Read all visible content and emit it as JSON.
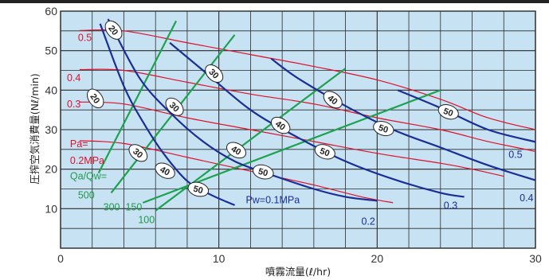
{
  "chart_data": {
    "type": "line",
    "xlabel": "噴霧流量(ℓ/hr)",
    "ylabel": "圧搾空気消費量(Nℓ/min)",
    "xlim": [
      0,
      30
    ],
    "ylim": [
      0,
      60
    ],
    "x_ticks": [
      "0",
      "10",
      "20",
      "30"
    ],
    "y_ticks": [
      "10",
      "20",
      "30",
      "40",
      "50",
      "60"
    ],
    "grid": true,
    "colors": {
      "plot_bg": "#c7e2f3",
      "grid": "#2a2a2a",
      "air_pressure": "#e0102a",
      "water_pressure": "#1b2e95",
      "ratio": "#1ea24f",
      "label_red": "#e0102a",
      "label_blue": "#1b2e95",
      "label_green": "#1e9a4a"
    },
    "air_pressure_lines": [
      {
        "name": "0.5",
        "points": [
          [
            1.2,
            55.1
          ],
          [
            4.0,
            55.0
          ],
          [
            8.0,
            52.0
          ],
          [
            12.0,
            49.0
          ],
          [
            16.0,
            46.0
          ],
          [
            20.0,
            42.6
          ],
          [
            24.0,
            37.7
          ],
          [
            27.0,
            33.0
          ],
          [
            30.0,
            30.0
          ]
        ]
      },
      {
        "name": "0.4",
        "points": [
          [
            1.2,
            45.2
          ],
          [
            4.0,
            45.0
          ],
          [
            8.0,
            42.0
          ],
          [
            12.0,
            39.0
          ],
          [
            16.0,
            36.5
          ],
          [
            20.0,
            33.0
          ],
          [
            24.0,
            30.0
          ],
          [
            27.0,
            27.0
          ],
          [
            30.0,
            24.5
          ]
        ]
      },
      {
        "name": "0.3",
        "points": [
          [
            1.2,
            37.0
          ],
          [
            4.0,
            36.5
          ],
          [
            8.0,
            33.0
          ],
          [
            12.0,
            30.0
          ],
          [
            16.0,
            27.0
          ],
          [
            20.0,
            24.0
          ],
          [
            24.0,
            21.5
          ],
          [
            26.0,
            20.0
          ],
          [
            28.0,
            18.2
          ]
        ]
      },
      {
        "name": "0.2MPa",
        "points": [
          [
            1.2,
            27.2
          ],
          [
            4.0,
            26.5
          ],
          [
            8.0,
            23.0
          ],
          [
            12.0,
            19.5
          ],
          [
            16.0,
            16.0
          ],
          [
            19.0,
            13.0
          ],
          [
            21.0,
            11.5
          ]
        ]
      }
    ],
    "water_pressure_lines": [
      {
        "name": "Pw=0.1MPa",
        "points": [
          [
            2.5,
            56.8
          ],
          [
            4.0,
            41.0
          ],
          [
            5.2,
            32.0
          ],
          [
            6.5,
            24.0
          ],
          [
            8.0,
            17.0
          ],
          [
            9.5,
            13.5
          ],
          [
            11.0,
            10.9
          ]
        ]
      },
      {
        "name": "0.2",
        "points": [
          [
            3.0,
            58.0
          ],
          [
            5.0,
            43.0
          ],
          [
            7.0,
            34.0
          ],
          [
            9.0,
            27.0
          ],
          [
            11.0,
            22.0
          ],
          [
            13.0,
            19.0
          ],
          [
            16.0,
            15.0
          ],
          [
            18.0,
            13.0
          ],
          [
            20.0,
            12.0
          ]
        ]
      },
      {
        "name": "0.3",
        "points": [
          [
            6.9,
            52.0
          ],
          [
            9.0,
            45.0
          ],
          [
            12.0,
            35.0
          ],
          [
            15.0,
            28.0
          ],
          [
            18.0,
            22.0
          ],
          [
            21.0,
            17.5
          ],
          [
            24.0,
            14.0
          ],
          [
            25.5,
            13.0
          ]
        ]
      },
      {
        "name": "0.4",
        "points": [
          [
            13.3,
            48.0
          ],
          [
            15.0,
            43.0
          ],
          [
            18.0,
            36.0
          ],
          [
            21.0,
            30.0
          ],
          [
            24.0,
            25.5
          ],
          [
            27.0,
            21.0
          ],
          [
            30.0,
            17.2
          ]
        ]
      },
      {
        "name": "0.5",
        "points": [
          [
            21.3,
            40.0
          ],
          [
            24.0,
            35.5
          ],
          [
            27.0,
            30.0
          ],
          [
            30.0,
            26.9
          ]
        ]
      }
    ],
    "ratio_lines": [
      {
        "name": "100",
        "points": [
          [
            6.0,
            9.5
          ],
          [
            18.0,
            45.5
          ]
        ]
      },
      {
        "name": "150",
        "points": [
          [
            5.2,
            11.5
          ],
          [
            24.0,
            40.0
          ]
        ]
      },
      {
        "name": "300",
        "points": [
          [
            3.2,
            14.0
          ],
          [
            11.0,
            54.0
          ]
        ]
      },
      {
        "name": "500",
        "points": [
          [
            2.4,
            19.0
          ],
          [
            7.3,
            57.5
          ]
        ]
      }
    ],
    "oval_labels": [
      {
        "text": "20",
        "x": 3.35,
        "y": 55.2,
        "angle": 52
      },
      {
        "text": "30",
        "x": 9.7,
        "y": 44.2,
        "angle": 45
      },
      {
        "text": "40",
        "x": 17.2,
        "y": 37.6,
        "angle": 38
      },
      {
        "text": "50",
        "x": 24.5,
        "y": 34.5,
        "angle": 20
      },
      {
        "text": "20",
        "x": 2.2,
        "y": 37.9,
        "angle": 55
      },
      {
        "text": "30",
        "x": 7.2,
        "y": 35.8,
        "angle": 45
      },
      {
        "text": "40",
        "x": 13.9,
        "y": 31.1,
        "angle": 35
      },
      {
        "text": "50",
        "x": 20.4,
        "y": 30.3,
        "angle": 18
      },
      {
        "text": "30",
        "x": 4.9,
        "y": 24.1,
        "angle": 40
      },
      {
        "text": "40",
        "x": 11.1,
        "y": 24.8,
        "angle": 30
      },
      {
        "text": "50",
        "x": 16.7,
        "y": 24.4,
        "angle": 20
      },
      {
        "text": "40",
        "x": 6.6,
        "y": 19.6,
        "angle": 28
      },
      {
        "text": "50",
        "x": 12.8,
        "y": 19.3,
        "angle": 15
      },
      {
        "text": "50",
        "x": 8.7,
        "y": 14.9,
        "angle": 15
      }
    ],
    "labels": {
      "air": [
        {
          "text": "0.5",
          "x": 1.1,
          "y": 52.5
        },
        {
          "text": "0.4",
          "x": 0.4,
          "y": 42.3
        },
        {
          "text": "0.3",
          "x": 0.4,
          "y": 35.6
        },
        {
          "text": "Pa=",
          "x": 0.6,
          "y": 25.6
        },
        {
          "text": "0.2MPa",
          "x": 0.6,
          "y": 21.3
        }
      ],
      "water": [
        {
          "text": "Pw=0.1MPa",
          "x": 11.7,
          "y": 11.4
        },
        {
          "text": "0.2",
          "x": 19.0,
          "y": 5.9
        },
        {
          "text": "0.3",
          "x": 24.2,
          "y": 10.0
        },
        {
          "text": "0.4",
          "x": 29.0,
          "y": 11.9
        },
        {
          "text": "0.5",
          "x": 28.3,
          "y": 22.9
        }
      ],
      "ratio": [
        {
          "text": "Qa/Qw=",
          "x": 0.6,
          "y": 17.4
        },
        {
          "text": "500",
          "x": 1.1,
          "y": 12.6
        },
        {
          "text": "300",
          "x": 2.7,
          "y": 9.6
        },
        {
          "text": "150",
          "x": 4.1,
          "y": 9.6
        },
        {
          "text": "100",
          "x": 4.9,
          "y": 6.3
        }
      ]
    }
  }
}
